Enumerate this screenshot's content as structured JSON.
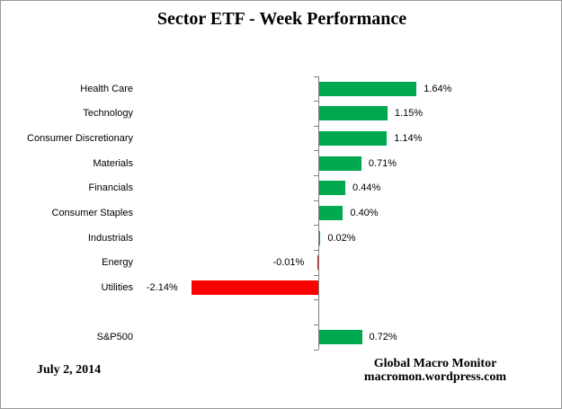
{
  "chart_data": {
    "type": "bar",
    "orientation": "horizontal",
    "title": "Sector ETF - Week Performance",
    "categories": [
      "Health Care",
      "Technology",
      "Consumer Discretionary",
      "Materials",
      "Financials",
      "Consumer Staples",
      "Industrials",
      "Energy",
      "Utilities",
      "",
      "S&P500"
    ],
    "values": [
      1.64,
      1.15,
      1.14,
      0.71,
      0.44,
      0.4,
      0.02,
      -0.01,
      -2.14,
      null,
      0.72
    ],
    "value_labels": [
      "1.64%",
      "1.15%",
      "1.14%",
      "0.71%",
      "0.44%",
      "0.40%",
      "0.02%",
      "-0.01%",
      "-2.14%",
      "",
      "0.72%"
    ],
    "unit": "%",
    "positive_color": "#00A94F",
    "negative_color": "#FF0000",
    "axis_color": "#808080",
    "grid": false,
    "legend": "none",
    "x_axis_labels_shown": false
  },
  "footer": {
    "date": "July 2, 2014",
    "attribution_line1": "Global Macro Monitor",
    "attribution_line2": "macromon.wordpress.com"
  }
}
